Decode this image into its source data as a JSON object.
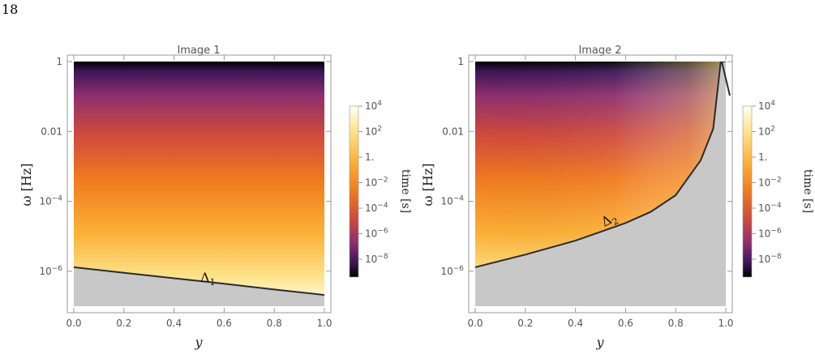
{
  "page_number": "18",
  "chart_data": [
    {
      "type": "heatmap",
      "title": "Image 1",
      "xlabel": "y",
      "ylabel": "ω [Hz]",
      "xlim": [
        0,
        1
      ],
      "ylim": [
        1e-07,
        1
      ],
      "y_scale": "log",
      "x_ticks": [
        "0.0",
        "0.2",
        "0.4",
        "0.6",
        "0.8",
        "1.0"
      ],
      "y_ticks": [
        "1",
        "0.01",
        "10-4",
        "10-6"
      ],
      "colorbar": {
        "label": "time [s]",
        "scale": "log",
        "ticks": [
          "10^4",
          "10^2",
          "1.",
          "10^-2",
          "10^-4",
          "10^-6",
          "10^-8"
        ],
        "colors": [
          "#fffef2",
          "#fde38a",
          "#fbb036",
          "#f07a1f",
          "#cf4a3c",
          "#8e2f6e",
          "#4a1a6b",
          "#000000"
        ]
      },
      "below_curve_color": "#c8c8c8",
      "curve": {
        "label": "Δ1",
        "x": [
          0.0,
          0.2,
          0.4,
          0.6,
          0.8,
          1.0
        ],
        "omega": [
          1.3e-06,
          9e-07,
          6.3e-07,
          4.4e-07,
          3e-07,
          2.1e-07
        ]
      }
    },
    {
      "type": "heatmap",
      "title": "Image 2",
      "xlabel": "y",
      "ylabel": "ω [Hz]",
      "xlim": [
        0,
        1
      ],
      "ylim": [
        1e-07,
        1
      ],
      "y_scale": "log",
      "x_ticks": [
        "0.0",
        "0.2",
        "0.4",
        "0.6",
        "0.8",
        "1.0"
      ],
      "y_ticks": [
        "1",
        "0.01",
        "10-4",
        "10-6"
      ],
      "colorbar": {
        "label": "time [s]",
        "scale": "log",
        "ticks": [
          "10^4",
          "10^2",
          "1.",
          "10^-2",
          "10^-4",
          "10^-6",
          "10^-8"
        ],
        "colors": [
          "#fffef2",
          "#fde38a",
          "#fbb036",
          "#f07a1f",
          "#cf4a3c",
          "#8e2f6e",
          "#4a1a6b",
          "#000000"
        ]
      },
      "below_curve_color": "#c8c8c8",
      "curve": {
        "label": "Δ2",
        "x": [
          0.0,
          0.2,
          0.4,
          0.6,
          0.7,
          0.8,
          0.9,
          0.95,
          0.98,
          1.0
        ],
        "omega": [
          1.3e-06,
          3e-06,
          7.5e-06,
          2.4e-05,
          5e-05,
          0.00015,
          0.0015,
          0.012,
          1.0,
          1.0
        ]
      }
    }
  ]
}
